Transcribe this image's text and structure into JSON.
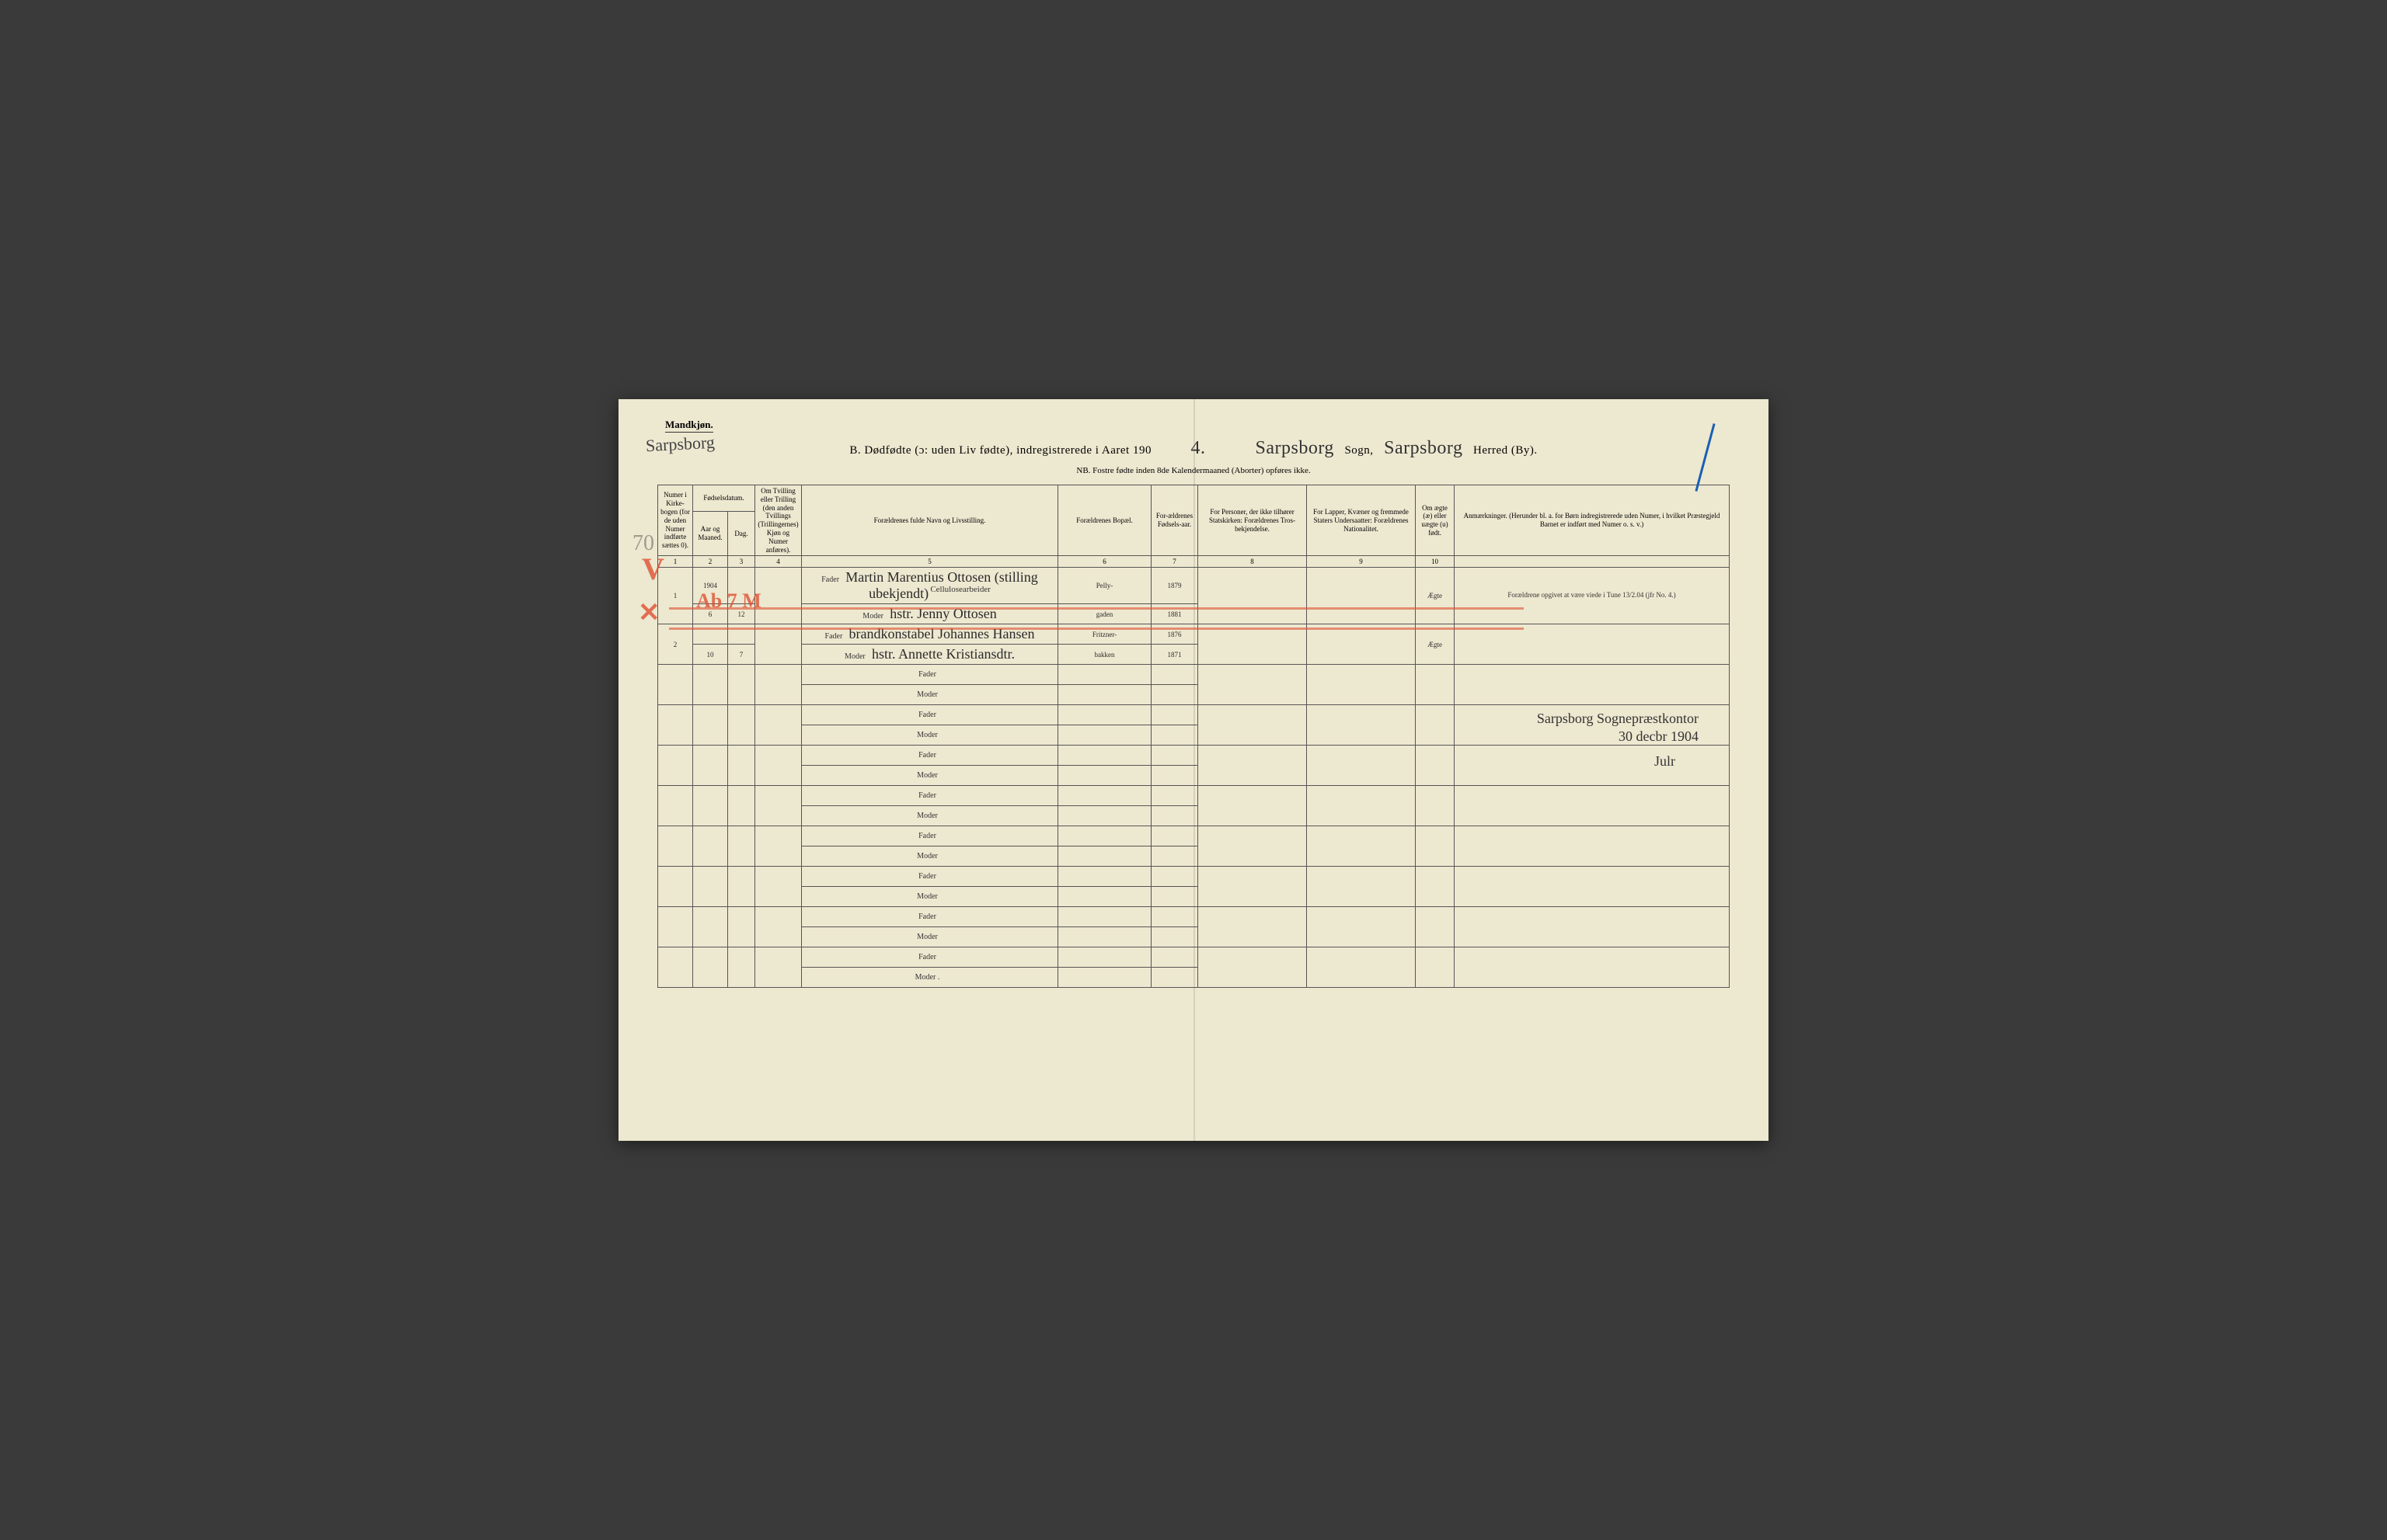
{
  "corner_label": "Mandkjøn.",
  "corner_handwritten": "Sarpsborg",
  "title": {
    "prefix": "B.   Dødfødte (ɔ: uden Liv fødte), indregistrerede i Aaret 190",
    "year_suffix": "4.",
    "parish_hw": "Sarpsborg",
    "label_sogn": "Sogn,",
    "district_hw": "Sarpsborg",
    "label_herred": "Herred (By)."
  },
  "subtitle": "NB.  Fostre fødte inden 8de Kalendermaaned (Aborter) opføres ikke.",
  "columns": {
    "c1": "Numer i Kirke-bogen (for de uden Numer indførte sættes 0).",
    "c2_group": "Fødselsdatum.",
    "c2a": "Aar og Maaned.",
    "c2b": "Dag.",
    "c4": "Om Tvilling eller Trilling (den anden Tvillings (Trillingernes) Kjøn og Numer anføres).",
    "c5": "Forældrenes fulde Navn og Livsstilling.",
    "c6": "Forældrenes Bopæl.",
    "c7": "For-ældrenes Fødsels-aar.",
    "c8": "For Personer, der ikke tilhører Statskirken: Forældrenes Tros-bekjendelse.",
    "c9": "For Lapper, Kvæner og fremmede Staters Undersaatter: Forældrenes Nationalitet.",
    "c10": "Om ægte (æ) eller uægte (u) født.",
    "c11": "Anmærkninger. (Herunder bl. a. for Børn indregistrerede uden Numer, i hvilket Præstegjeld Barnet er indført med Numer o. s. v.)"
  },
  "colnums": [
    "1",
    "2",
    "3",
    "4",
    "5",
    "6",
    "7",
    "8",
    "9",
    "10"
  ],
  "role_fader": "Fader",
  "role_moder": "Moder",
  "entries": [
    {
      "num": "1",
      "year_hw": "1904",
      "month": "6",
      "day": "12",
      "fader_above": "Cellulosearbeider",
      "fader_name": "Martin Marentius Ottosen (stilling ubekjendt)",
      "moder_name": "hstr. Jenny Ottosen",
      "bopael_f": "Pelly-",
      "bopael_m": "gaden",
      "faar_f": "1879",
      "faar_m": "1881",
      "aegte": "Ægte",
      "note": "Forældrene opgivet at være viede i Tune 13/2.04 (jfr No. 4.)"
    },
    {
      "num": "2",
      "month": "10",
      "day": "7",
      "fader_name": "brandkonstabel Johannes Hansen",
      "moder_name": "hstr. Annette Kristiansdtr.",
      "bopael_f": "Fritzner-",
      "bopael_m": "bakken",
      "faar_f": "1876",
      "faar_m": "1871",
      "aegte": "Ægte",
      "note": ""
    }
  ],
  "signature": "Sarpsborg Sognepræstkontor\n30 decbr 1904",
  "signature2": "Julr",
  "pencil_70": "70",
  "red_v": "V",
  "red_x": "✕",
  "red_ab": "Ab 7 M",
  "colors": {
    "paper": "#ede8d0",
    "ink": "#2a2a2a",
    "red": "rgba(220,80,50,0.7)",
    "blue": "#1a5fb4",
    "pencil": "rgba(80,80,80,0.5)"
  }
}
